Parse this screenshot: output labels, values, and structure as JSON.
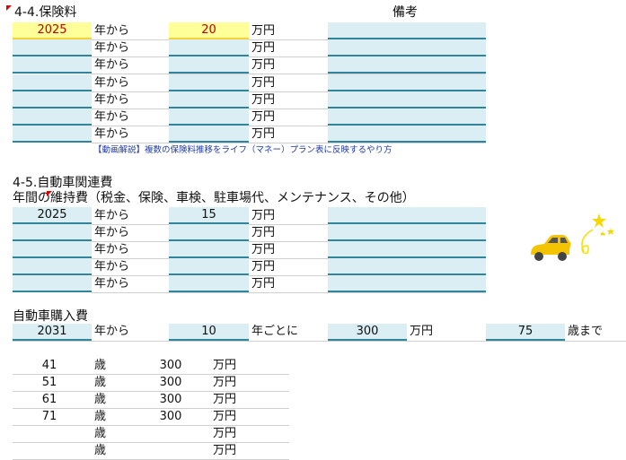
{
  "insurance": {
    "title": "4-4.保険料",
    "remarks_header": "備考",
    "from_label": "年から",
    "unit": "万円",
    "rows": [
      {
        "year": "2025",
        "amount": "20"
      },
      {
        "year": "",
        "amount": ""
      },
      {
        "year": "",
        "amount": ""
      },
      {
        "year": "",
        "amount": ""
      },
      {
        "year": "",
        "amount": ""
      },
      {
        "year": "",
        "amount": ""
      },
      {
        "year": "",
        "amount": ""
      }
    ],
    "link": "【動画解説】複数の保険料推移をライフ（マネー）プラン表に反映するやり方"
  },
  "car": {
    "title": "4-5.自動車関連費",
    "maintenance_title": "年間の維持費（税金、保険、車検、駐車場代、メンテナンス、その他）",
    "rows": [
      {
        "year": "2025",
        "amount": "15"
      },
      {
        "year": "",
        "amount": ""
      },
      {
        "year": "",
        "amount": ""
      },
      {
        "year": "",
        "amount": ""
      },
      {
        "year": "",
        "amount": ""
      }
    ],
    "purchase_title": "自動車購入費",
    "purchase": {
      "year": "2031",
      "from_label": "年から",
      "interval": "10",
      "interval_label": "年ごとに",
      "amount": "300",
      "unit": "万円",
      "until_age": "75",
      "until_label": "歳まで"
    },
    "age_label": "歳",
    "schedule": [
      {
        "age": "41",
        "amount": "300"
      },
      {
        "age": "51",
        "amount": "300"
      },
      {
        "age": "61",
        "amount": "300"
      },
      {
        "age": "71",
        "amount": "300"
      },
      {
        "age": "",
        "amount": ""
      },
      {
        "age": "",
        "amount": ""
      }
    ]
  },
  "colors": {
    "input_fill": "#daeef3",
    "input_border": "#31849b",
    "highlight_fill": "#ffff99",
    "highlight_text": "#c00000",
    "link": "#1f3aa8"
  }
}
